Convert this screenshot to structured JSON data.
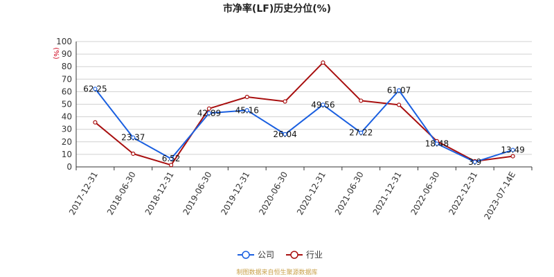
{
  "chart_data": {
    "type": "line",
    "title": "市净率(LF)历史分位(%)",
    "ylabel": "(%)",
    "ylim": [
      0,
      100
    ],
    "yticks": [
      0,
      10,
      20,
      30,
      40,
      50,
      60,
      70,
      80,
      90,
      100
    ],
    "categories": [
      "2017-12-31",
      "2018-06-30",
      "2018-12-31",
      "2019-06-30",
      "2019-12-31",
      "2020-06-30",
      "2020-12-31",
      "2021-06-30",
      "2021-12-31",
      "2022-06-30",
      "2022-12-31",
      "2023-07-14E"
    ],
    "series": [
      {
        "name": "公司",
        "color": "#1a5fe0",
        "values": [
          62.25,
          23.37,
          6.52,
          42.89,
          45.16,
          26.04,
          49.56,
          27.22,
          61.07,
          18.48,
          3.9,
          13.49
        ],
        "labels": [
          "62.25",
          "23.37",
          "6.52",
          "42.89",
          "45.16",
          "26.04",
          "49.56",
          "27.22",
          "61.07",
          "18.48",
          "3.9",
          "13.49"
        ]
      },
      {
        "name": "行业",
        "color": "#a80f0f",
        "values": [
          35.5,
          10.5,
          1.5,
          46.5,
          55.8,
          52.2,
          83.2,
          52.8,
          49.5,
          20.5,
          4.5,
          8.5
        ]
      }
    ],
    "grid": true,
    "legend_position": "bottom-center",
    "source": "制图数据来自恒生聚源数据库"
  }
}
